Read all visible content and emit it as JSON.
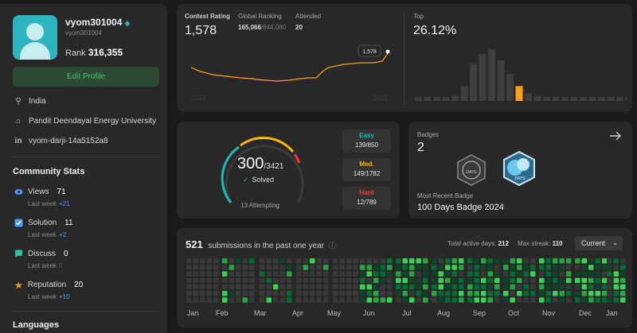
{
  "profile": {
    "username": "vyom301004",
    "user_id": "vyom301004",
    "rank_label": "Rank",
    "rank_value": "316,355",
    "edit_label": "Edit Profile",
    "location": "India",
    "university": "Pandit Deendayal Energy University",
    "linkedin": "vyom-darji-14a5152a8"
  },
  "community": {
    "title": "Community Stats",
    "stats": [
      {
        "label": "Views",
        "value": "71",
        "sub": "Last week",
        "delta": "+21"
      },
      {
        "label": "Solution",
        "value": "11",
        "sub": "Last week",
        "delta": "+2"
      },
      {
        "label": "Discuss",
        "value": "0",
        "sub": "Last week",
        "delta": "0"
      },
      {
        "label": "Reputation",
        "value": "20",
        "sub": "Last week",
        "delta": "+10"
      }
    ]
  },
  "languages_title": "Languages",
  "contest": {
    "rating_label": "Contest Rating",
    "rating": "1,578",
    "global_label": "Global Ranking",
    "global_rank": "165,066",
    "global_total": "/644,080",
    "attended_label": "Attended",
    "attended": "20",
    "tooltip": "1,578",
    "year_start": "2024",
    "year_end": "2025",
    "top_label": "Top",
    "top_value": "26.12%"
  },
  "solved": {
    "count": "300",
    "total": "/3421",
    "solved_label": "Solved",
    "check": "✓",
    "attempting": "13 Attempting",
    "easy_label": "Easy",
    "easy": "139/850",
    "med_label": "Med.",
    "med": "149/1782",
    "hard_label": "Hard",
    "hard": "12/789"
  },
  "badges": {
    "title": "Badges",
    "count": "2",
    "recent_label": "Most Recent Badge",
    "recent": "100 Days Badge 2024",
    "badge1_text": "DAYS",
    "badge2_text": "DAYS"
  },
  "heatmap": {
    "count": "521",
    "caption": "submissions in the past one year",
    "active_label": "Total active days:",
    "active": "212",
    "streak_label": "Max streak:",
    "streak": "110",
    "select": "Current",
    "months": [
      "Jan",
      "Feb",
      "Mar",
      "Apr",
      "May",
      "Jun",
      "Jul",
      "Aug",
      "Sep",
      "Oct",
      "Nov",
      "Dec",
      "Jan"
    ]
  },
  "colors": {
    "accent": "#ffa116",
    "easy": "#1cbaba",
    "medium": "#ffb700",
    "hard": "#f63737",
    "green": "#2cbb5d"
  }
}
